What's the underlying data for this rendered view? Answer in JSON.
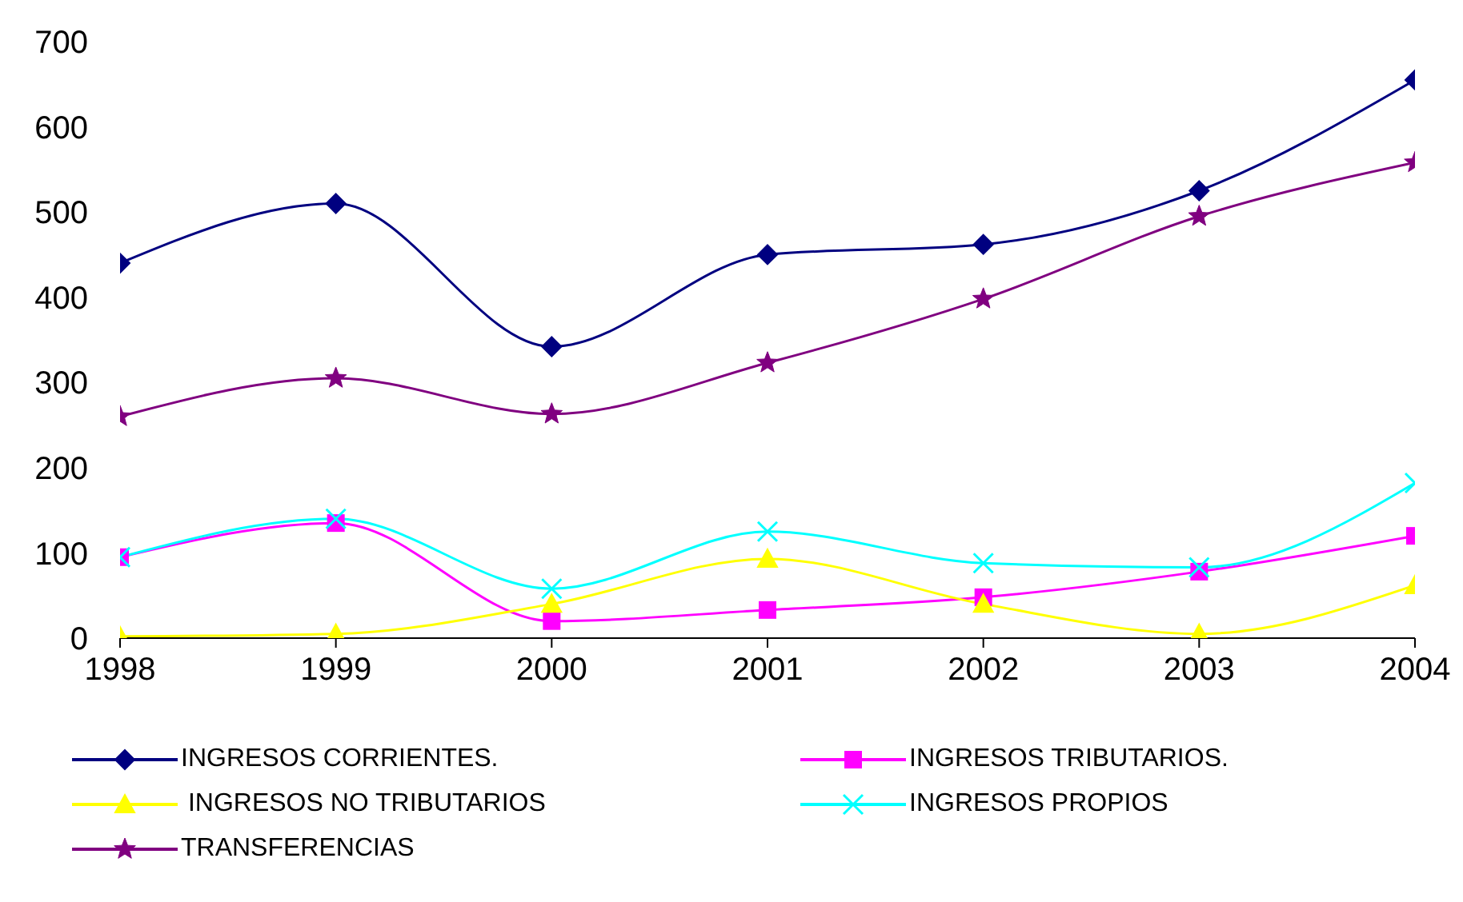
{
  "chart_data": {
    "type": "line",
    "x": [
      1998,
      1999,
      2000,
      2001,
      2002,
      2003,
      2004
    ],
    "xlim": [
      1998,
      2004
    ],
    "xticks": [
      1998,
      1999,
      2000,
      2001,
      2002,
      2003,
      2004
    ],
    "ylim": [
      0,
      700
    ],
    "yticks": [
      0,
      100,
      200,
      300,
      400,
      500,
      600,
      700
    ],
    "grid": false,
    "legend": "bottom",
    "series": [
      {
        "name": "INGRESOS CORRIENTES.",
        "color": "#000080",
        "marker": "diamond",
        "values": [
          440,
          510,
          342,
          450,
          462,
          525,
          655
        ]
      },
      {
        "name": "INGRESOS TRIBUTARIOS.",
        "color": "#ff00ff",
        "marker": "square",
        "values": [
          95,
          135,
          20,
          33,
          48,
          78,
          120
        ]
      },
      {
        "name": " INGRESOS NO TRIBUTARIOS",
        "color": "#ffff00",
        "marker": "triangle",
        "values": [
          2,
          5,
          40,
          93,
          40,
          5,
          62
        ]
      },
      {
        "name": "INGRESOS PROPIOS",
        "color": "#00ffff",
        "marker": "cross",
        "values": [
          95,
          140,
          58,
          125,
          88,
          83,
          182
        ]
      },
      {
        "name": "TRANSFERENCIAS",
        "color": "#800080",
        "marker": "star",
        "values": [
          260,
          305,
          263,
          323,
          398,
          495,
          558
        ]
      }
    ]
  }
}
